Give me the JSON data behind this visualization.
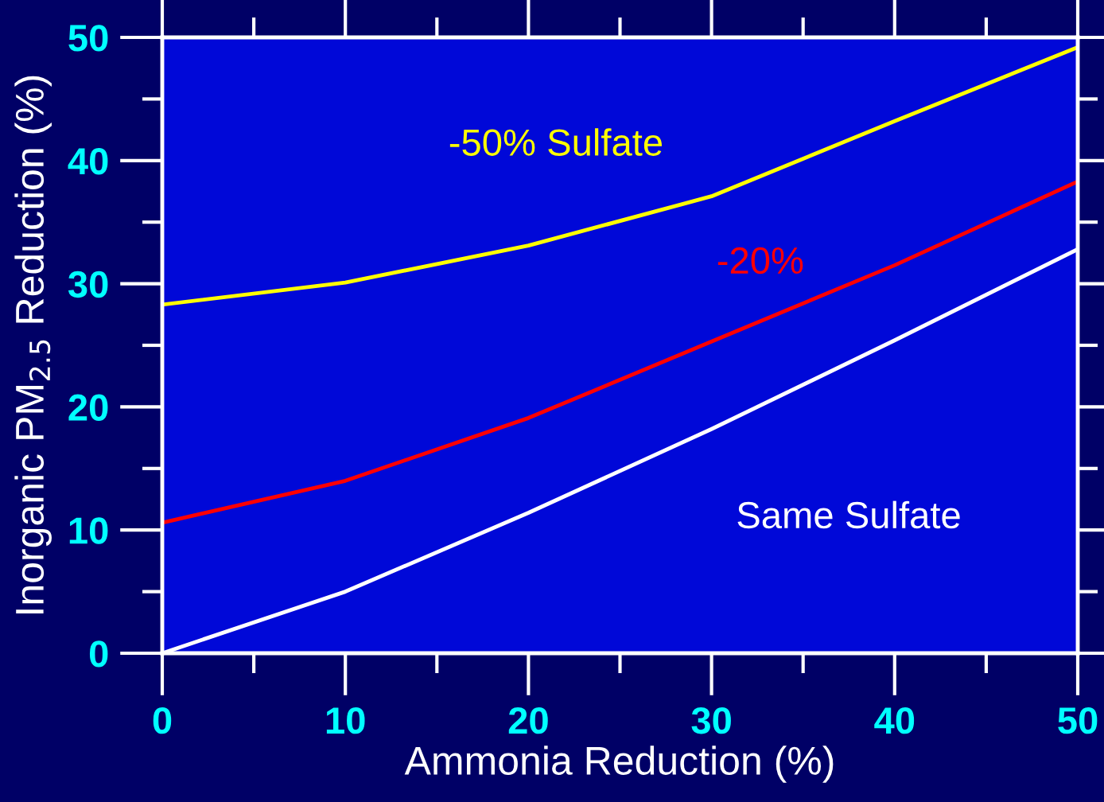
{
  "chart_data": {
    "type": "line",
    "xlabel": "Ammonia Reduction (%)",
    "ylabel": "Inorganic PM$_{2.5}$ Reduction (%)",
    "x": [
      0,
      10,
      20,
      30,
      40,
      50
    ],
    "series": [
      {
        "name": "-50% Sulfate",
        "color": "#ffff00",
        "values": [
          28.3,
          30.1,
          33.1,
          37.1,
          43.2,
          49.2
        ]
      },
      {
        "name": "-20%",
        "color": "#ff0000",
        "values": [
          10.6,
          14.0,
          19.1,
          25.3,
          31.5,
          38.3
        ]
      },
      {
        "name": "Same Sulfate",
        "color": "#ffffff",
        "values": [
          0,
          5.0,
          11.4,
          18.2,
          25.4,
          32.8
        ]
      }
    ],
    "xlim": [
      0,
      50
    ],
    "ylim": [
      0,
      50
    ],
    "xticks": [
      0,
      10,
      20,
      30,
      40,
      50
    ],
    "yticks": [
      0,
      10,
      20,
      30,
      40,
      50
    ],
    "grid": false,
    "marker": "none",
    "line_style": "solid",
    "legend": false
  }
}
